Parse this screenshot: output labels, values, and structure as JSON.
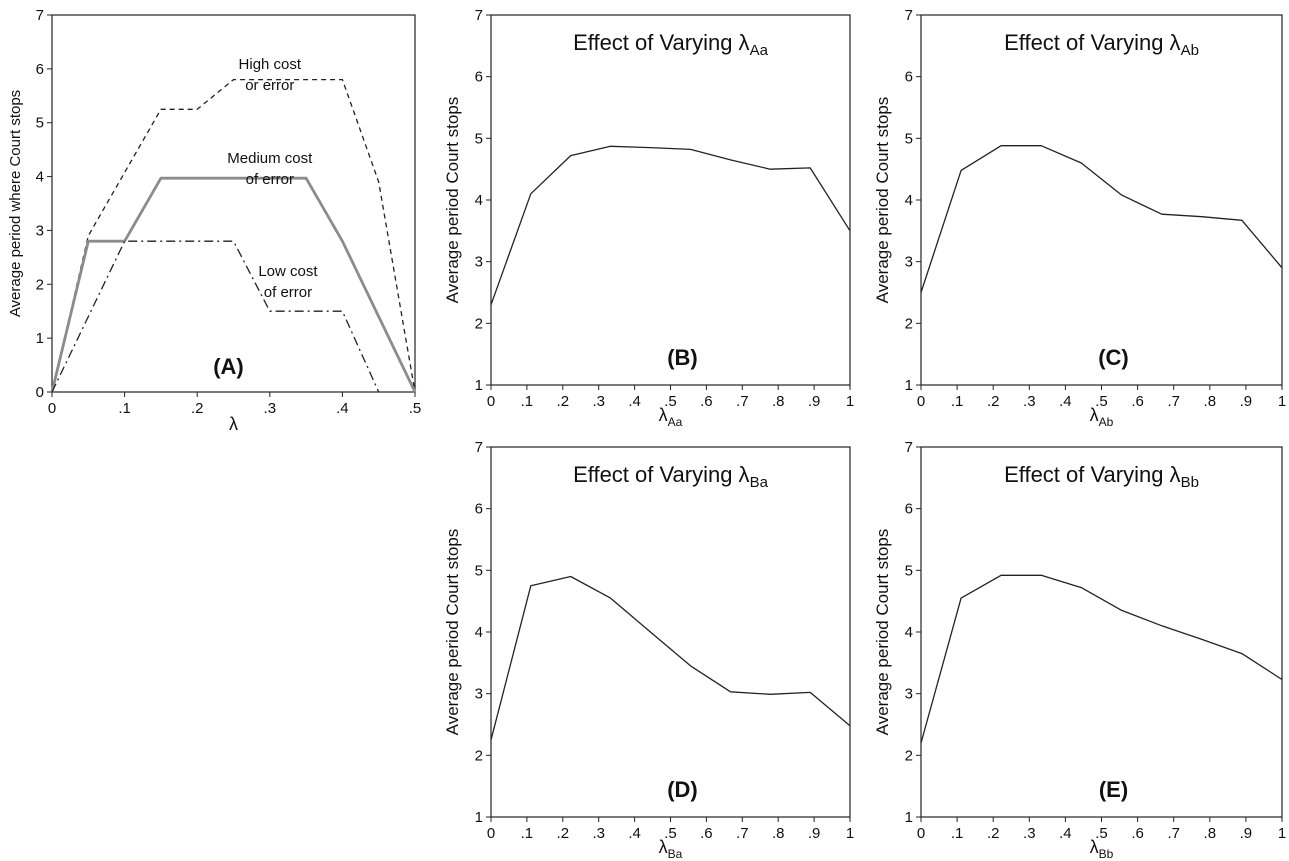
{
  "chart_data": [
    {
      "panel": "(A)",
      "type": "line",
      "title": "",
      "xlabel": "λ",
      "ylabel": "Average period where Court stops",
      "xlim": [
        0,
        0.5
      ],
      "ylim": [
        0,
        7
      ],
      "xticks": [
        "0",
        ".1",
        ".2",
        ".3",
        ".4",
        ".5"
      ],
      "yticks": [
        "0",
        "1",
        "2",
        "3",
        "4",
        "5",
        "6",
        "7"
      ],
      "grid": false,
      "series": [
        {
          "style": "dashed",
          "color": "#222222",
          "x": [
            0,
            0.05,
            0.15,
            0.2,
            0.25,
            0.4,
            0.45,
            0.5
          ],
          "y": [
            0,
            2.9,
            5.25,
            5.25,
            5.8,
            5.8,
            3.9,
            0
          ]
        },
        {
          "style": "solid-thick",
          "color": "#8c8c8c",
          "x": [
            0,
            0.05,
            0.1,
            0.15,
            0.35,
            0.4,
            0.45,
            0.5
          ],
          "y": [
            0,
            2.8,
            2.8,
            3.97,
            3.97,
            2.8,
            1.4,
            0
          ]
        },
        {
          "style": "dashdot",
          "color": "#222222",
          "x": [
            0,
            0.1,
            0.25,
            0.3,
            0.4,
            0.45
          ],
          "y": [
            0,
            2.8,
            2.8,
            1.5,
            1.5,
            0
          ]
        }
      ],
      "annotations": [
        {
          "lines": [
            "High cost",
            "or error"
          ],
          "x": 0.3,
          "y": 6.0
        },
        {
          "lines": [
            "Medium cost",
            "of error"
          ],
          "x": 0.3,
          "y": 4.25
        },
        {
          "lines": [
            "Low cost",
            "of error"
          ],
          "x": 0.325,
          "y": 2.15
        }
      ]
    },
    {
      "panel": "(B)",
      "type": "line",
      "title": "Effect of Varying λ",
      "title_sub": "Aa",
      "xlabel": "λ",
      "xlabel_sub": "Aa",
      "ylabel": "Average period Court stops",
      "xlim": [
        0,
        1
      ],
      "ylim": [
        1,
        7
      ],
      "xticks": [
        "0",
        ".1",
        ".2",
        ".3",
        ".4",
        ".5",
        ".6",
        ".7",
        ".8",
        ".9",
        "1"
      ],
      "yticks": [
        "1",
        "2",
        "3",
        "4",
        "5",
        "6",
        "7"
      ],
      "grid": false,
      "series": [
        {
          "color": "#222222",
          "x": [
            0,
            0.111,
            0.222,
            0.333,
            0.444,
            0.556,
            0.667,
            0.778,
            0.889,
            1
          ],
          "y": [
            2.3,
            4.1,
            4.72,
            4.87,
            4.85,
            4.82,
            4.65,
            4.5,
            4.52,
            3.5
          ]
        }
      ]
    },
    {
      "panel": "(C)",
      "type": "line",
      "title": "Effect of Varying λ",
      "title_sub": "Ab",
      "xlabel": "λ",
      "xlabel_sub": "Ab",
      "ylabel": "Average period Court stops",
      "xlim": [
        0,
        1
      ],
      "ylim": [
        1,
        7
      ],
      "xticks": [
        "0",
        ".1",
        ".2",
        ".3",
        ".4",
        ".5",
        ".6",
        ".7",
        ".8",
        ".9",
        "1"
      ],
      "yticks": [
        "1",
        "2",
        "3",
        "4",
        "5",
        "6",
        "7"
      ],
      "grid": false,
      "series": [
        {
          "color": "#222222",
          "x": [
            0,
            0.111,
            0.222,
            0.333,
            0.444,
            0.556,
            0.667,
            0.778,
            0.889,
            1
          ],
          "y": [
            2.5,
            4.48,
            4.88,
            4.88,
            4.6,
            4.08,
            3.77,
            3.73,
            3.67,
            2.9
          ]
        }
      ]
    },
    {
      "panel": "(D)",
      "type": "line",
      "title": "Effect of Varying λ",
      "title_sub": "Ba",
      "xlabel": "λ",
      "xlabel_sub": "Ba",
      "ylabel": "Average period Court stops",
      "xlim": [
        0,
        1
      ],
      "ylim": [
        1,
        7
      ],
      "xticks": [
        "0",
        ".1",
        ".2",
        ".3",
        ".4",
        ".5",
        ".6",
        ".7",
        ".8",
        ".9",
        "1"
      ],
      "yticks": [
        "1",
        "2",
        "3",
        "4",
        "5",
        "6",
        "7"
      ],
      "grid": false,
      "series": [
        {
          "color": "#222222",
          "x": [
            0,
            0.111,
            0.222,
            0.333,
            0.444,
            0.556,
            0.667,
            0.778,
            0.889,
            1
          ],
          "y": [
            2.25,
            4.75,
            4.9,
            4.55,
            4.0,
            3.45,
            3.03,
            2.99,
            3.02,
            2.48
          ]
        }
      ]
    },
    {
      "panel": "(E)",
      "type": "line",
      "title": "Effect of Varying λ",
      "title_sub": "Bb",
      "xlabel": "λ",
      "xlabel_sub": "Bb",
      "ylabel": "Average period Court stops",
      "xlim": [
        0,
        1
      ],
      "ylim": [
        1,
        7
      ],
      "xticks": [
        "0",
        ".1",
        ".2",
        ".3",
        ".4",
        ".5",
        ".6",
        ".7",
        ".8",
        ".9",
        "1"
      ],
      "yticks": [
        "1",
        "2",
        "3",
        "4",
        "5",
        "6",
        "7"
      ],
      "grid": false,
      "series": [
        {
          "color": "#222222",
          "x": [
            0,
            0.111,
            0.222,
            0.333,
            0.444,
            0.556,
            0.667,
            0.778,
            0.889,
            1
          ],
          "y": [
            2.2,
            4.55,
            4.92,
            4.92,
            4.72,
            4.35,
            4.1,
            3.88,
            3.65,
            3.23
          ]
        }
      ]
    }
  ]
}
